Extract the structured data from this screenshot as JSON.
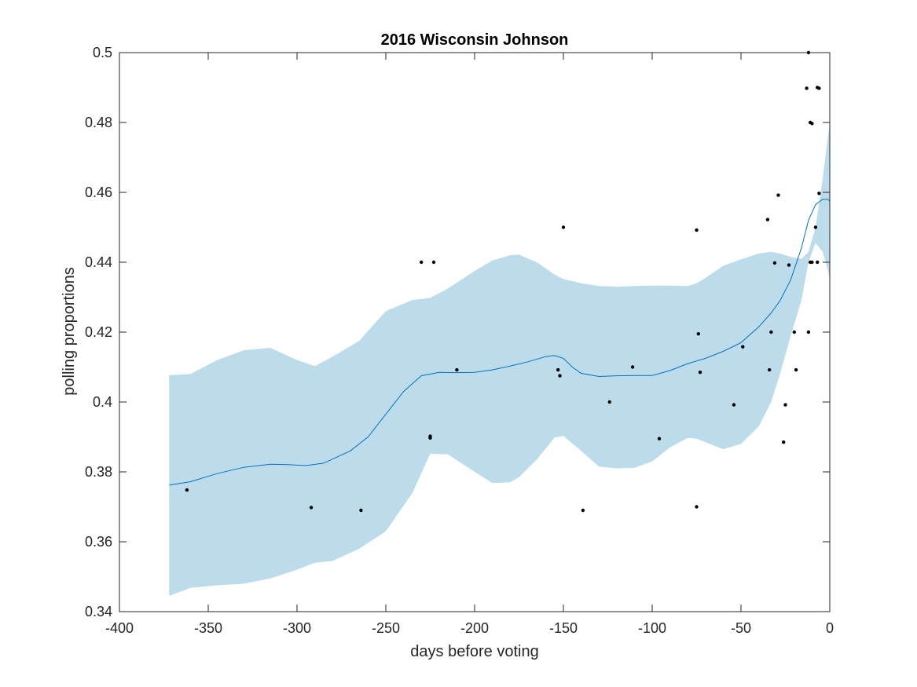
{
  "chart_data": {
    "type": "line",
    "title": "2016 Wisconsin Johnson",
    "xlabel": "days before voting",
    "ylabel": "polling proportions",
    "xlim": [
      -400,
      0
    ],
    "ylim": [
      0.34,
      0.5
    ],
    "xticks": [
      -400,
      -350,
      -300,
      -250,
      -200,
      -150,
      -100,
      -50,
      0
    ],
    "yticks": [
      0.34,
      0.36,
      0.38,
      0.4,
      0.42,
      0.44,
      0.46,
      0.48,
      0.5
    ],
    "xtick_labels": [
      "-400",
      "-350",
      "-300",
      "-250",
      "-200",
      "-150",
      "-100",
      "-50",
      "0"
    ],
    "ytick_labels": [
      "0.34",
      "0.36",
      "0.38",
      "0.4",
      "0.42",
      "0.44",
      "0.46",
      "0.48",
      "0.5"
    ],
    "grid": false,
    "colors": {
      "line": "#0072BD",
      "band": "#BDDCEB",
      "points": "#000000",
      "axes": "#262626"
    },
    "band": {
      "x": [
        -372,
        -360,
        -345,
        -330,
        -315,
        -300,
        -290,
        -280,
        -265,
        -250,
        -235,
        -225,
        -215,
        -200,
        -190,
        -180,
        -175,
        -165,
        -155,
        -150,
        -140,
        -130,
        -120,
        -110,
        -100,
        -90,
        -80,
        -75,
        -70,
        -60,
        -50,
        -40,
        -33,
        -28,
        -22,
        -16,
        -12,
        -8,
        -4,
        -1,
        0
      ],
      "upper": [
        0.4077,
        0.408,
        0.412,
        0.4148,
        0.4155,
        0.412,
        0.4103,
        0.413,
        0.4175,
        0.426,
        0.4292,
        0.4298,
        0.4325,
        0.4375,
        0.4405,
        0.442,
        0.4422,
        0.44,
        0.4365,
        0.4352,
        0.434,
        0.4332,
        0.433,
        0.4332,
        0.4333,
        0.4333,
        0.4332,
        0.434,
        0.4355,
        0.439,
        0.4408,
        0.4425,
        0.443,
        0.4425,
        0.4415,
        0.441,
        0.443,
        0.45,
        0.464,
        0.476,
        0.48
      ],
      "lower": [
        0.3445,
        0.3468,
        0.3475,
        0.348,
        0.3495,
        0.352,
        0.354,
        0.3545,
        0.358,
        0.363,
        0.374,
        0.3852,
        0.385,
        0.38,
        0.3768,
        0.377,
        0.3785,
        0.3835,
        0.3898,
        0.3903,
        0.386,
        0.3815,
        0.381,
        0.3812,
        0.383,
        0.387,
        0.3897,
        0.3895,
        0.3885,
        0.3865,
        0.388,
        0.393,
        0.4,
        0.408,
        0.419,
        0.429,
        0.44,
        0.4455,
        0.443,
        0.4375,
        0.435
      ]
    },
    "series": [
      {
        "type": "line",
        "x": [
          -372,
          -360,
          -345,
          -330,
          -315,
          -305,
          -295,
          -285,
          -270,
          -260,
          -250,
          -240,
          -230,
          -220,
          -210,
          -200,
          -190,
          -180,
          -170,
          -160,
          -155,
          -150,
          -145,
          -140,
          -130,
          -120,
          -110,
          -100,
          -90,
          -80,
          -70,
          -60,
          -50,
          -40,
          -33,
          -28,
          -22,
          -16,
          -12,
          -8,
          -4,
          -1,
          0
        ],
        "y": [
          0.3762,
          0.3772,
          0.3795,
          0.3813,
          0.3822,
          0.3821,
          0.3818,
          0.3825,
          0.386,
          0.39,
          0.3965,
          0.403,
          0.4075,
          0.4085,
          0.4084,
          0.4085,
          0.4092,
          0.4103,
          0.4115,
          0.413,
          0.4133,
          0.4125,
          0.41,
          0.4082,
          0.4073,
          0.4075,
          0.4076,
          0.4076,
          0.409,
          0.411,
          0.4125,
          0.4145,
          0.417,
          0.4215,
          0.4255,
          0.429,
          0.435,
          0.444,
          0.452,
          0.4565,
          0.458,
          0.458,
          0.4575
        ]
      },
      {
        "type": "scatter",
        "x": [
          -362,
          -292,
          -264,
          -230,
          -225,
          -225,
          -223,
          -210,
          -153,
          -152,
          -150,
          -139,
          -124,
          -111,
          -96,
          -75,
          -75,
          -74,
          -73,
          -54,
          -49,
          -35,
          -34,
          -33,
          -31,
          -29,
          -26,
          -25,
          -23,
          -20,
          -19,
          -13,
          -12,
          -12,
          -11,
          -11,
          -10,
          -10,
          -8,
          -7,
          -7,
          -6,
          -6
        ],
        "y": [
          0.3748,
          0.3698,
          0.369,
          0.44,
          0.3902,
          0.3897,
          0.44,
          0.4092,
          0.4092,
          0.4075,
          0.45,
          0.369,
          0.4,
          0.41,
          0.3895,
          0.4492,
          0.37,
          0.4195,
          0.4085,
          0.3992,
          0.4158,
          0.4522,
          0.4092,
          0.42,
          0.4398,
          0.4592,
          0.3885,
          0.3992,
          0.4392,
          0.42,
          0.4092,
          0.4898,
          0.42,
          0.5,
          0.44,
          0.48,
          0.4797,
          0.44,
          0.45,
          0.49,
          0.44,
          0.4898,
          0.4597
        ]
      }
    ]
  }
}
